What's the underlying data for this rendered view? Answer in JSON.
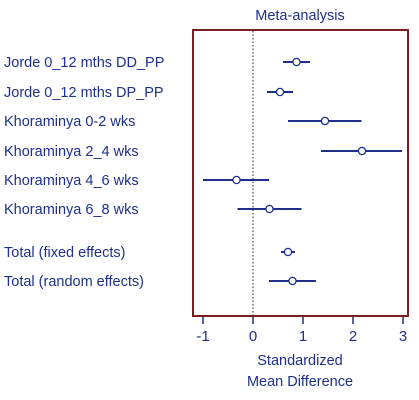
{
  "chart_data": {
    "type": "forest",
    "title": "Meta-analysis",
    "xlabel_lines": [
      "Standardized",
      "Mean Difference"
    ],
    "xlim": [
      -1.2,
      3.1
    ],
    "xticks": [
      -1,
      0,
      1,
      2,
      3
    ],
    "reference_line": 0,
    "grid": false,
    "colors": {
      "frame": "#7a1f1f",
      "text": "#1f2f8c",
      "ci": "#1f2f8c",
      "marker_fill": "#ffffff"
    },
    "studies": [
      {
        "label": "Jorde 0_12 mths DD_PP",
        "estimate": 0.87,
        "lower": 0.6,
        "upper": 1.14
      },
      {
        "label": "Jorde 0_12 mths DP_PP",
        "estimate": 0.54,
        "lower": 0.28,
        "upper": 0.8
      },
      {
        "label": "Khoraminya 0-2 wks",
        "estimate": 1.44,
        "lower": 0.7,
        "upper": 2.17
      },
      {
        "label": "Khoraminya 2_4 wks",
        "estimate": 2.18,
        "lower": 1.36,
        "upper": 2.98
      },
      {
        "label": "Khoraminya 4_6 wks",
        "estimate": -0.33,
        "lower": -1.0,
        "upper": 0.32
      },
      {
        "label": "Khoraminya 6_8 wks",
        "estimate": 0.33,
        "lower": -0.31,
        "upper": 0.97
      }
    ],
    "totals": [
      {
        "label": "Total (fixed effects)",
        "estimate": 0.7,
        "lower": 0.56,
        "upper": 0.84
      },
      {
        "label": "Total (random effects)",
        "estimate": 0.79,
        "lower": 0.32,
        "upper": 1.26
      }
    ]
  }
}
